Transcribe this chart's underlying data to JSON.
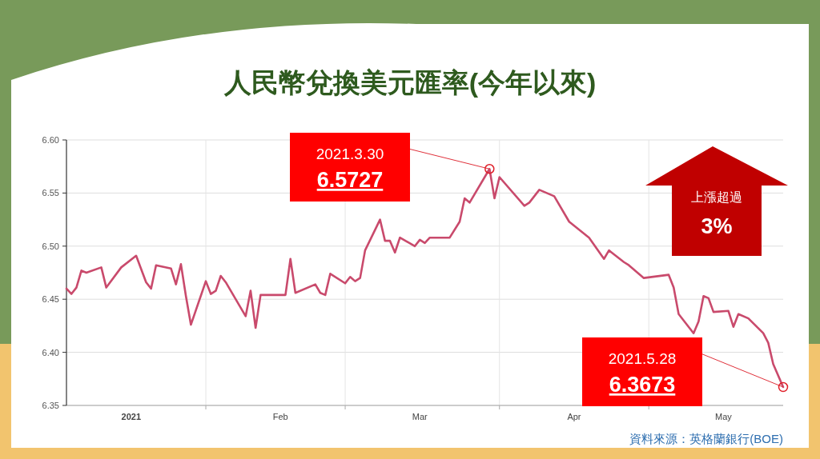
{
  "chart_data": {
    "type": "line",
    "title": "人民幣兌換美元匯率(今年以來)",
    "x": [
      "2021-01-04",
      "2021-01-05",
      "2021-01-06",
      "2021-01-07",
      "2021-01-08",
      "2021-01-11",
      "2021-01-12",
      "2021-01-15",
      "2021-01-18",
      "2021-01-20",
      "2021-01-21",
      "2021-01-22",
      "2021-01-25",
      "2021-01-26",
      "2021-01-27",
      "2021-01-28",
      "2021-01-29",
      "2021-02-01",
      "2021-02-02",
      "2021-02-03",
      "2021-02-04",
      "2021-02-05",
      "2021-02-09",
      "2021-02-10",
      "2021-02-11",
      "2021-02-12",
      "2021-02-17",
      "2021-02-18",
      "2021-02-19",
      "2021-02-23",
      "2021-02-24",
      "2021-02-25",
      "2021-02-26",
      "2021-03-01",
      "2021-03-02",
      "2021-03-03",
      "2021-03-04",
      "2021-03-05",
      "2021-03-08",
      "2021-03-09",
      "2021-03-10",
      "2021-03-11",
      "2021-03-12",
      "2021-03-15",
      "2021-03-16",
      "2021-03-17",
      "2021-03-18",
      "2021-03-22",
      "2021-03-24",
      "2021-03-25",
      "2021-03-26",
      "2021-03-30",
      "2021-03-31",
      "2021-04-01",
      "2021-04-06",
      "2021-04-07",
      "2021-04-09",
      "2021-04-12",
      "2021-04-15",
      "2021-04-19",
      "2021-04-22",
      "2021-04-23",
      "2021-04-26",
      "2021-04-27",
      "2021-04-30",
      "2021-05-05",
      "2021-05-06",
      "2021-05-07",
      "2021-05-10",
      "2021-05-11",
      "2021-05-12",
      "2021-05-13",
      "2021-05-14",
      "2021-05-17",
      "2021-05-18",
      "2021-05-19",
      "2021-05-21",
      "2021-05-24",
      "2021-05-25",
      "2021-05-26",
      "2021-05-28"
    ],
    "series": [
      {
        "color": "#c94a6c",
        "values": [
          6.46,
          6.455,
          6.461,
          6.477,
          6.475,
          6.48,
          6.461,
          6.48,
          6.491,
          6.466,
          6.46,
          6.482,
          6.479,
          6.464,
          6.483,
          6.453,
          6.426,
          6.467,
          6.455,
          6.458,
          6.472,
          6.466,
          6.434,
          6.458,
          6.423,
          6.454,
          6.454,
          6.488,
          6.456,
          6.464,
          6.456,
          6.454,
          6.474,
          6.465,
          6.471,
          6.467,
          6.47,
          6.496,
          6.525,
          6.505,
          6.505,
          6.494,
          6.508,
          6.5,
          6.506,
          6.503,
          6.508,
          6.508,
          6.523,
          6.545,
          6.541,
          6.5727,
          6.545,
          6.565,
          6.538,
          6.541,
          6.553,
          6.547,
          6.523,
          6.508,
          6.488,
          6.496,
          6.485,
          6.482,
          6.47,
          6.473,
          6.461,
          6.436,
          6.418,
          6.429,
          6.453,
          6.451,
          6.438,
          6.439,
          6.424,
          6.436,
          6.432,
          6.418,
          6.409,
          6.389,
          6.3673
        ]
      }
    ],
    "xlim": [
      "2021-01-04",
      "2021-05-28"
    ],
    "xticks": [
      {
        "value": "2021-01-17",
        "label": "2021"
      },
      {
        "value": "2021-02-01",
        "label": null
      },
      {
        "value": "2021-02-16",
        "label": "Feb"
      },
      {
        "value": "2021-03-01",
        "label": null
      },
      {
        "value": "2021-03-16",
        "label": "Mar"
      },
      {
        "value": "2021-04-01",
        "label": null
      },
      {
        "value": "2021-04-16",
        "label": "Apr"
      },
      {
        "value": "2021-05-01",
        "label": null
      },
      {
        "value": "2021-05-16",
        "label": "May"
      }
    ],
    "ylim": [
      6.35,
      6.6
    ],
    "yticks": [
      6.35,
      {
        "value": 6.4,
        "label": "6.40"
      },
      6.45,
      {
        "value": 6.5,
        "label": "6.50"
      },
      6.55,
      {
        "value": 6.6,
        "label": "6.60"
      }
    ],
    "grid": true,
    "marker": "none",
    "line_style": "solid",
    "annotations": [
      {
        "text": "2021.3.30\n6.5727",
        "x": "2021-03-30",
        "y": 6.5727
      },
      {
        "text": "2021.5.28\n6.3673",
        "x": "2021-05-28",
        "y": 6.3673
      },
      "上漲超過\n3%",
      "資料來源：英格蘭銀行(BOE)"
    ]
  }
}
